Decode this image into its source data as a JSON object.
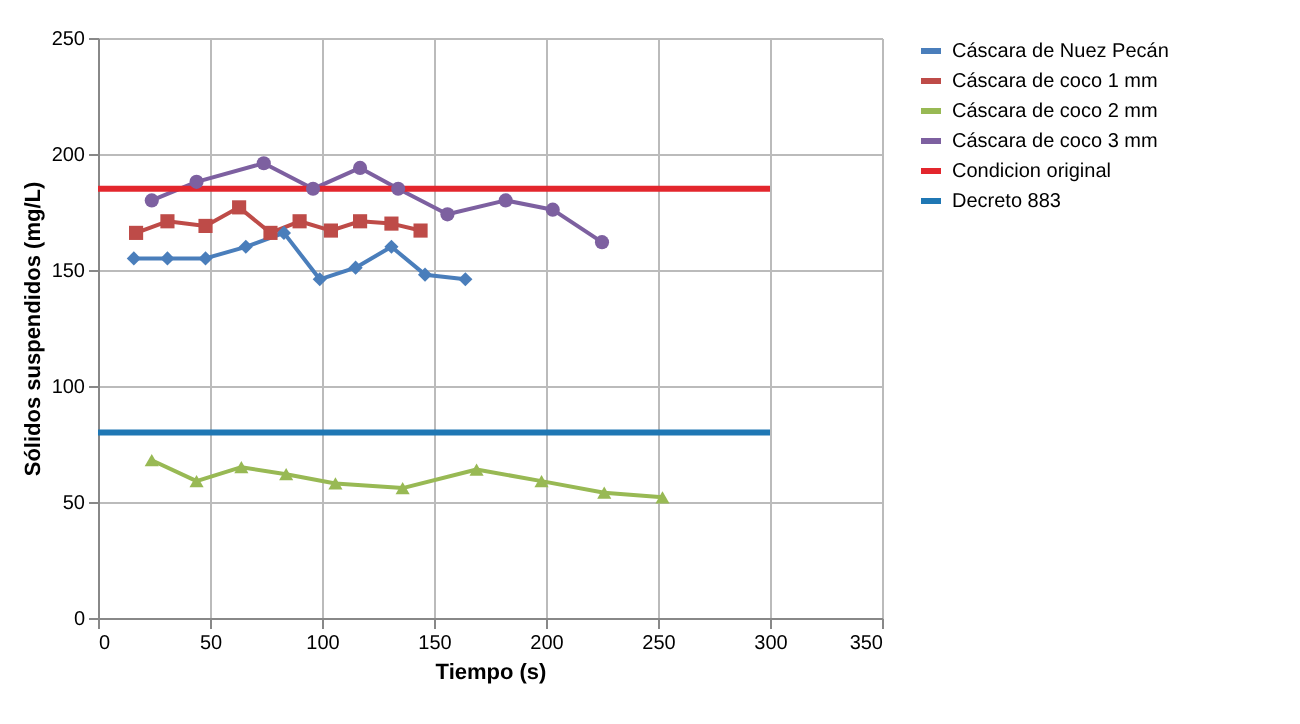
{
  "chart_data": {
    "type": "line",
    "xlabel": "Tiempo (s)",
    "ylabel": "Sólidos suspendidos (mg/L)",
    "xlim": [
      0,
      350
    ],
    "xticks": [
      0,
      50,
      100,
      150,
      200,
      250,
      300,
      350
    ],
    "ylim": [
      0,
      250
    ],
    "yticks": [
      0,
      50,
      100,
      150,
      200,
      250
    ],
    "grid": true,
    "legend": "right",
    "series": [
      {
        "name": "Cáscara de Nuez Pecán",
        "color": "#4a7ebb",
        "marker": "diamond",
        "x": [
          16,
          31,
          48,
          66,
          83,
          99,
          115,
          131,
          146,
          164
        ],
        "values": [
          155,
          155,
          155,
          160,
          166,
          146,
          151,
          160,
          148,
          146
        ]
      },
      {
        "name": "Cáscara de coco 1 mm",
        "color": "#be4b48",
        "marker": "square",
        "x": [
          17,
          31,
          48,
          63,
          77,
          90,
          104,
          117,
          131,
          144
        ],
        "values": [
          166,
          171,
          169,
          177,
          166,
          171,
          167,
          171,
          170,
          167
        ]
      },
      {
        "name": "Cáscara de coco 2 mm",
        "color": "#98b954",
        "marker": "triangle",
        "x": [
          24,
          44,
          64,
          84,
          106,
          136,
          169,
          198,
          226,
          252
        ],
        "values": [
          68,
          59,
          65,
          62,
          58,
          56,
          64,
          59,
          54,
          52
        ]
      },
      {
        "name": "Cáscara de coco 3 mm",
        "color": "#7d60a0",
        "marker": "circle",
        "x": [
          24,
          44,
          74,
          96,
          117,
          134,
          156,
          182,
          203,
          225
        ],
        "values": [
          180,
          188,
          196,
          185,
          194,
          185,
          174,
          180,
          176,
          162
        ]
      },
      {
        "name": "Condicion original",
        "color": "#e3262d",
        "marker": "none",
        "x": [
          0,
          300
        ],
        "values": [
          185,
          185
        ]
      },
      {
        "name": "Decreto 883",
        "color": "#1f77b4",
        "marker": "none",
        "x": [
          0,
          300
        ],
        "values": [
          80,
          80
        ]
      }
    ]
  }
}
